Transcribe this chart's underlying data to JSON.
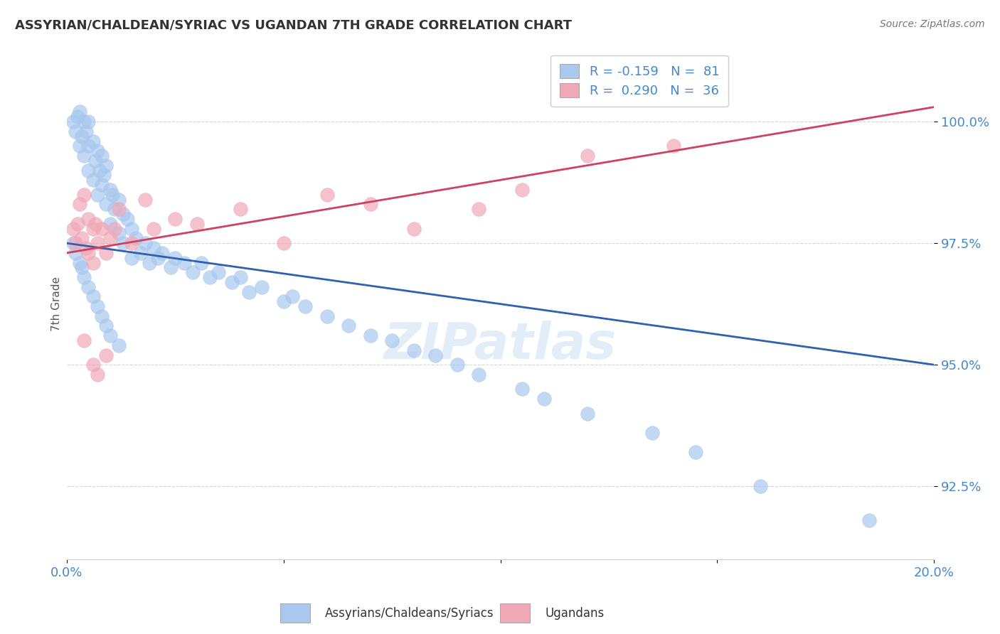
{
  "title": "ASSYRIAN/CHALDEAN/SYRIAC VS UGANDAN 7TH GRADE CORRELATION CHART",
  "source_text": "Source: ZipAtlas.com",
  "xlabel_assyrian": "Assyrians/Chaldeans/Syriacs",
  "xlabel_ugandan": "Ugandans",
  "ylabel": "7th Grade",
  "xlim": [
    0.0,
    20.0
  ],
  "ylim": [
    91.0,
    101.5
  ],
  "yticks": [
    92.5,
    95.0,
    97.5,
    100.0
  ],
  "ytick_labels": [
    "92.5%",
    "95.0%",
    "97.5%",
    "100.0%"
  ],
  "xticks": [
    0.0,
    5.0,
    10.0,
    15.0,
    20.0
  ],
  "xtick_labels": [
    "0.0%",
    "",
    "",
    "",
    "20.0%"
  ],
  "blue_color": "#A8C8EE",
  "pink_color": "#F0A8B8",
  "line_blue": "#3060B0",
  "line_pink": "#D04060",
  "title_color": "#333333",
  "axis_color": "#4488CC",
  "grid_color": "#CCCCCC",
  "blue_scatter_x": [
    0.15,
    0.2,
    0.25,
    0.3,
    0.3,
    0.35,
    0.4,
    0.4,
    0.45,
    0.5,
    0.5,
    0.5,
    0.6,
    0.6,
    0.65,
    0.7,
    0.7,
    0.75,
    0.8,
    0.8,
    0.85,
    0.9,
    0.9,
    1.0,
    1.0,
    1.05,
    1.1,
    1.2,
    1.2,
    1.3,
    1.3,
    1.4,
    1.5,
    1.5,
    1.6,
    1.7,
    1.8,
    1.9,
    2.0,
    2.1,
    2.2,
    2.4,
    2.5,
    2.7,
    2.9,
    3.1,
    3.3,
    3.5,
    3.8,
    4.0,
    4.2,
    4.5,
    5.0,
    5.2,
    5.5,
    6.0,
    6.5,
    7.0,
    7.5,
    8.0,
    8.5,
    9.0,
    9.5,
    10.5,
    11.0,
    12.0,
    13.5,
    14.5,
    16.0,
    18.5,
    0.15,
    0.2,
    0.3,
    0.35,
    0.4,
    0.5,
    0.6,
    0.7,
    0.8,
    0.9,
    1.0,
    1.2
  ],
  "blue_scatter_y": [
    100.0,
    99.8,
    100.1,
    99.5,
    100.2,
    99.7,
    100.0,
    99.3,
    99.8,
    100.0,
    99.5,
    99.0,
    99.6,
    98.8,
    99.2,
    99.4,
    98.5,
    99.0,
    99.3,
    98.7,
    98.9,
    99.1,
    98.3,
    98.6,
    97.9,
    98.5,
    98.2,
    98.4,
    97.7,
    98.1,
    97.5,
    98.0,
    97.8,
    97.2,
    97.6,
    97.3,
    97.5,
    97.1,
    97.4,
    97.2,
    97.3,
    97.0,
    97.2,
    97.1,
    96.9,
    97.1,
    96.8,
    96.9,
    96.7,
    96.8,
    96.5,
    96.6,
    96.3,
    96.4,
    96.2,
    96.0,
    95.8,
    95.6,
    95.5,
    95.3,
    95.2,
    95.0,
    94.8,
    94.5,
    94.3,
    94.0,
    93.6,
    93.2,
    92.5,
    91.8,
    97.5,
    97.3,
    97.1,
    97.0,
    96.8,
    96.6,
    96.4,
    96.2,
    96.0,
    95.8,
    95.6,
    95.4
  ],
  "pink_scatter_x": [
    0.15,
    0.2,
    0.25,
    0.3,
    0.35,
    0.4,
    0.45,
    0.5,
    0.5,
    0.6,
    0.6,
    0.65,
    0.7,
    0.8,
    0.9,
    1.0,
    1.1,
    1.2,
    1.5,
    1.8,
    2.0,
    2.5,
    3.0,
    4.0,
    5.0,
    6.0,
    7.0,
    8.0,
    9.5,
    10.5,
    12.0,
    14.0,
    0.4,
    0.6,
    0.7,
    0.9
  ],
  "pink_scatter_y": [
    97.8,
    97.5,
    97.9,
    98.3,
    97.6,
    98.5,
    97.4,
    98.0,
    97.3,
    97.8,
    97.1,
    97.9,
    97.5,
    97.8,
    97.3,
    97.6,
    97.8,
    98.2,
    97.5,
    98.4,
    97.8,
    98.0,
    97.9,
    98.2,
    97.5,
    98.5,
    98.3,
    97.8,
    98.2,
    98.6,
    99.3,
    99.5,
    95.5,
    95.0,
    94.8,
    95.2
  ],
  "blue_line_x": [
    0.0,
    20.0
  ],
  "blue_line_y": [
    97.5,
    95.0
  ],
  "pink_line_x": [
    0.0,
    20.0
  ],
  "pink_line_y": [
    97.3,
    100.3
  ]
}
